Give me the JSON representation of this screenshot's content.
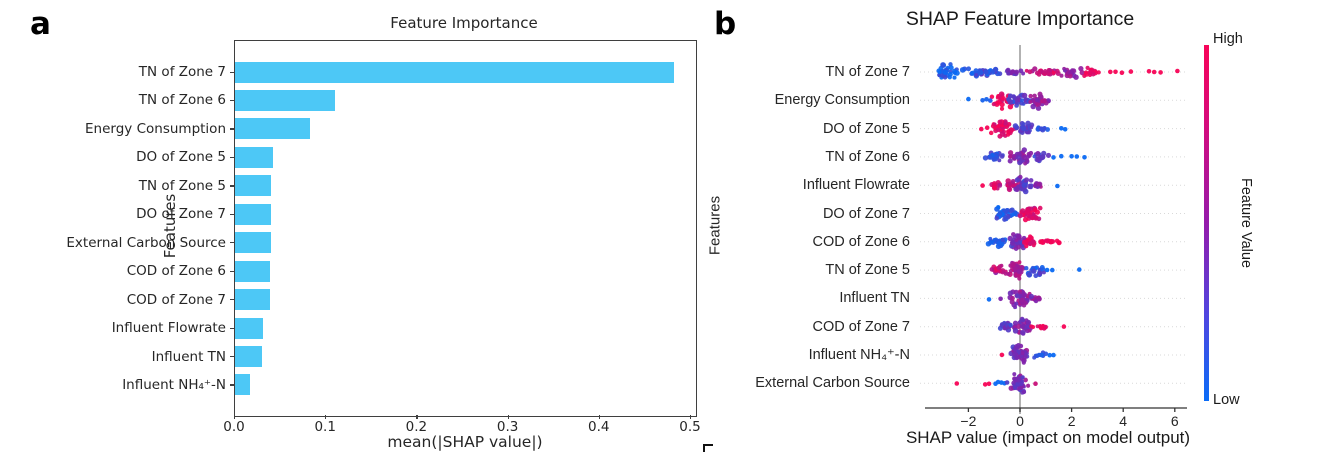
{
  "figure": {
    "panel_a_label": "a",
    "panel_b_label": "b"
  },
  "chart_data": [
    {
      "type": "bar",
      "orientation": "horizontal",
      "title": "Feature Importance",
      "xlabel": "mean(|SHAP value|)",
      "ylabel": "Features",
      "xlim": [
        0,
        0.5
      ],
      "xticks": [
        0.0,
        0.1,
        0.2,
        0.3,
        0.4,
        0.5
      ],
      "bar_color": "#4dc8f6",
      "categories": [
        "TN of Zone 7",
        "TN of Zone 6",
        "Energy Consumption",
        "DO of Zone 5",
        "TN of Zone 5",
        "DO of Zone 7",
        "External Carbon Source",
        "COD of Zone 6",
        "COD of Zone 7",
        "Influent Flowrate",
        "Influent TN",
        "Influent NH₄⁺-N"
      ],
      "values": [
        0.481,
        0.11,
        0.082,
        0.042,
        0.04,
        0.04,
        0.04,
        0.038,
        0.038,
        0.031,
        0.03,
        0.016
      ]
    },
    {
      "type": "scatter",
      "subtype": "beeswarm",
      "title": "SHAP Feature Importance",
      "xlabel": "SHAP value (impact on model output)",
      "ylabel": "Features",
      "xlim": [
        -3.7,
        6.5
      ],
      "xticks": [
        -2,
        0,
        2,
        4,
        6
      ],
      "grid": "dotted-horizontal",
      "zero_line": true,
      "colorbar": {
        "high": "High",
        "low": "Low",
        "label": "Feature Value",
        "top_color": "#f80459",
        "mid_color": "#951bab",
        "bottom_color": "#0a6cf7"
      },
      "point_colors": {
        "low": "#0a69f3",
        "mid": "#8023ac",
        "high": "#f70456"
      },
      "categories": [
        "TN of Zone 7",
        "Energy Consumption",
        "DO of Zone 5",
        "TN of Zone 6",
        "Influent Flowrate",
        "DO of Zone 7",
        "COD of Zone 6",
        "TN of Zone 5",
        "Influent TN",
        "COD of Zone 7",
        "Influent NH₄⁺-N",
        "External Carbon Source"
      ],
      "rows": [
        {
          "feature": "TN of Zone 7",
          "clusters": [
            {
              "c": -2.75,
              "hw": 0.55,
              "n": 28,
              "v": 0.04,
              "sp": 10
            },
            {
              "c": -1.45,
              "hw": 0.85,
              "n": 40,
              "v": 0.18,
              "sp": 4.5
            },
            {
              "c": -0.35,
              "hw": 0.45,
              "n": 14,
              "v": 0.45,
              "sp": 3
            },
            {
              "c": 0.95,
              "hw": 0.65,
              "n": 26,
              "v": 0.8,
              "sp": 4.5
            },
            {
              "c": 2.0,
              "hw": 0.45,
              "n": 22,
              "v": 0.6,
              "sp": 6.5
            },
            {
              "c": 2.75,
              "hw": 0.35,
              "n": 14,
              "v": 0.92,
              "sp": 5
            }
          ],
          "outliers": [
            [
              3.5,
              1
            ],
            [
              3.7,
              1
            ],
            [
              3.95,
              1
            ],
            [
              4.3,
              1
            ],
            [
              5.0,
              1
            ],
            [
              5.2,
              1
            ],
            [
              5.45,
              1
            ],
            [
              6.1,
              1
            ]
          ]
        },
        {
          "feature": "Energy Consumption",
          "clusters": [
            {
              "c": -0.65,
              "hw": 0.45,
              "n": 30,
              "v": 0.95,
              "sp": 9
            },
            {
              "c": 0.0,
              "hw": 0.45,
              "n": 26,
              "v": 0.3,
              "sp": 6
            },
            {
              "c": 0.75,
              "hw": 0.45,
              "n": 28,
              "v": 0.62,
              "sp": 9
            }
          ],
          "outliers": [
            [
              -2.0,
              0
            ],
            [
              -1.45,
              0.05
            ],
            [
              -1.3,
              0.05
            ],
            [
              -1.15,
              0.08
            ]
          ]
        },
        {
          "feature": "DO of Zone 5",
          "clusters": [
            {
              "c": -0.6,
              "hw": 0.5,
              "n": 38,
              "v": 0.92,
              "sp": 9
            },
            {
              "c": 0.2,
              "hw": 0.4,
              "n": 26,
              "v": 0.3,
              "sp": 6
            },
            {
              "c": 0.85,
              "hw": 0.25,
              "n": 10,
              "v": 0.08,
              "sp": 3
            }
          ],
          "outliers": [
            [
              -1.5,
              1
            ],
            [
              -1.27,
              1
            ],
            [
              1.6,
              0
            ],
            [
              1.75,
              0
            ]
          ]
        },
        {
          "feature": "TN of Zone 6",
          "clusters": [
            {
              "c": -0.95,
              "hw": 0.45,
              "n": 22,
              "v": 0.18,
              "sp": 6
            },
            {
              "c": 0.0,
              "hw": 0.5,
              "n": 34,
              "v": 0.55,
              "sp": 8.5
            },
            {
              "c": 0.75,
              "hw": 0.35,
              "n": 16,
              "v": 0.35,
              "sp": 5
            }
          ],
          "outliers": [
            [
              1.3,
              0
            ],
            [
              1.6,
              0
            ],
            [
              2.0,
              0
            ],
            [
              2.2,
              0
            ],
            [
              2.5,
              0
            ]
          ]
        },
        {
          "feature": "Influent Flowrate",
          "clusters": [
            {
              "c": -0.9,
              "hw": 0.25,
              "n": 12,
              "v": 0.85,
              "sp": 4
            },
            {
              "c": -0.3,
              "hw": 0.35,
              "n": 18,
              "v": 0.7,
              "sp": 5
            },
            {
              "c": 0.15,
              "hw": 0.35,
              "n": 30,
              "v": 0.35,
              "sp": 9.5
            },
            {
              "c": 0.7,
              "hw": 0.2,
              "n": 10,
              "v": 0.55,
              "sp": 3
            }
          ],
          "outliers": [
            [
              -1.45,
              1
            ],
            [
              1.45,
              0
            ]
          ]
        },
        {
          "feature": "DO of Zone 7",
          "clusters": [
            {
              "c": -0.55,
              "hw": 0.5,
              "n": 38,
              "v": 0.1,
              "sp": 9.5
            },
            {
              "c": 0.4,
              "hw": 0.45,
              "n": 32,
              "v": 0.88,
              "sp": 8.5
            }
          ],
          "outliers": []
        },
        {
          "feature": "COD of Zone 6",
          "clusters": [
            {
              "c": -0.85,
              "hw": 0.45,
              "n": 26,
              "v": 0.1,
              "sp": 4.5
            },
            {
              "c": -0.1,
              "hw": 0.35,
              "n": 36,
              "v": 0.45,
              "sp": 9.5
            },
            {
              "c": 0.35,
              "hw": 0.3,
              "n": 18,
              "v": 0.95,
              "sp": 6
            },
            {
              "c": 1.1,
              "hw": 0.5,
              "n": 14,
              "v": 1.0,
              "sp": 2.5
            }
          ],
          "outliers": []
        },
        {
          "feature": "TN of Zone 5",
          "clusters": [
            {
              "c": -0.85,
              "hw": 0.35,
              "n": 20,
              "v": 0.75,
              "sp": 5
            },
            {
              "c": -0.15,
              "hw": 0.35,
              "n": 34,
              "v": 0.7,
              "sp": 9.5
            },
            {
              "c": 0.55,
              "hw": 0.4,
              "n": 22,
              "v": 0.18,
              "sp": 6
            }
          ],
          "outliers": [
            [
              1.05,
              0
            ],
            [
              1.25,
              0
            ],
            [
              2.3,
              0
            ]
          ]
        },
        {
          "feature": "Influent TN",
          "clusters": [
            {
              "c": 0.0,
              "hw": 0.4,
              "n": 38,
              "v": 0.55,
              "sp": 10
            },
            {
              "c": 0.6,
              "hw": 0.25,
              "n": 10,
              "v": 0.6,
              "sp": 3.5
            }
          ],
          "outliers": [
            [
              -1.2,
              0
            ],
            [
              -0.75,
              0.5
            ]
          ]
        },
        {
          "feature": "COD of Zone 7",
          "clusters": [
            {
              "c": -0.45,
              "hw": 0.3,
              "n": 20,
              "v": 0.35,
              "sp": 6
            },
            {
              "c": 0.1,
              "hw": 0.4,
              "n": 30,
              "v": 0.5,
              "sp": 9
            },
            {
              "c": 0.85,
              "hw": 0.45,
              "n": 12,
              "v": 1.0,
              "sp": 2.5
            }
          ],
          "outliers": [
            [
              1.7,
              1
            ]
          ]
        },
        {
          "feature": "Influent NH₄⁺-N",
          "clusters": [
            {
              "c": -0.05,
              "hw": 0.45,
              "n": 40,
              "v": 0.45,
              "sp": 10.5
            },
            {
              "c": 0.7,
              "hw": 0.35,
              "n": 12,
              "v": 0.12,
              "sp": 3
            }
          ],
          "outliers": [
            [
              -0.7,
              1
            ],
            [
              1.15,
              0
            ],
            [
              1.3,
              0
            ]
          ]
        },
        {
          "feature": "External Carbon Source",
          "clusters": [
            {
              "c": 0.0,
              "hw": 0.35,
              "n": 42,
              "v": 0.45,
              "sp": 11
            }
          ],
          "outliers": [
            [
              -2.45,
              1
            ],
            [
              -1.35,
              1
            ],
            [
              -1.2,
              1
            ],
            [
              -0.95,
              0
            ],
            [
              -0.85,
              0
            ],
            [
              -0.72,
              0
            ],
            [
              -0.6,
              0
            ],
            [
              -0.5,
              0.3
            ],
            [
              0.6,
              0.8
            ]
          ]
        }
      ]
    }
  ]
}
